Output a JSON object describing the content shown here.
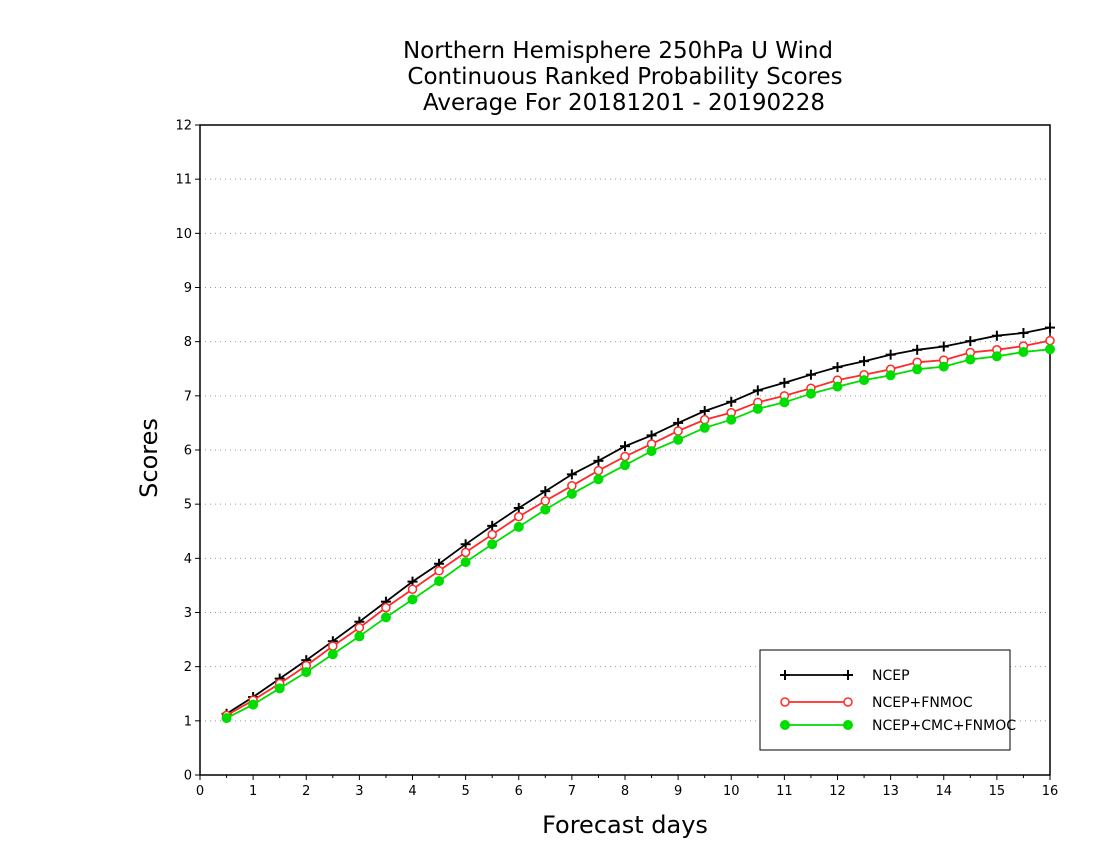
{
  "chart_data": {
    "type": "line",
    "title": [
      "Northern Hemisphere 250hPa U Wind",
      "Continuous Ranked Probability Scores",
      "Average For 20181201 - 20190228"
    ],
    "xlabel": "Forecast days",
    "ylabel": "Scores",
    "xlim": [
      0,
      16
    ],
    "ylim": [
      0,
      12
    ],
    "xticks": [
      "0",
      "1",
      "2",
      "3",
      "4",
      "5",
      "6",
      "7",
      "8",
      "9",
      "10",
      "11",
      "12",
      "13",
      "14",
      "15",
      "16"
    ],
    "yticks": [
      "0",
      "1",
      "2",
      "3",
      "4",
      "5",
      "6",
      "7",
      "8",
      "9",
      "10",
      "11",
      "12"
    ],
    "grid": true,
    "legend_position": "bottom-right",
    "x": [
      0.5,
      1,
      1.5,
      2,
      2.5,
      3,
      3.5,
      4,
      4.5,
      5,
      5.5,
      6,
      6.5,
      7,
      7.5,
      8,
      8.5,
      9,
      9.5,
      10,
      10.5,
      11,
      11.5,
      12,
      12.5,
      13,
      13.5,
      14,
      14.5,
      15,
      15.5,
      16
    ],
    "series": [
      {
        "name": "NCEP",
        "color": "#000000",
        "marker": "plus",
        "values": [
          1.13,
          1.44,
          1.78,
          2.12,
          2.47,
          2.83,
          3.2,
          3.57,
          3.9,
          4.26,
          4.6,
          4.93,
          5.24,
          5.55,
          5.8,
          6.07,
          6.27,
          6.5,
          6.72,
          6.89,
          7.1,
          7.24,
          7.39,
          7.53,
          7.64,
          7.76,
          7.85,
          7.91,
          8.01,
          8.11,
          8.16,
          8.26
        ]
      },
      {
        "name": "NCEP+FNMOC",
        "color": "#ff2a2a",
        "marker": "open-circle",
        "values": [
          1.1,
          1.38,
          1.69,
          2.02,
          2.38,
          2.72,
          3.09,
          3.43,
          3.77,
          4.11,
          4.44,
          4.77,
          5.06,
          5.34,
          5.62,
          5.88,
          6.11,
          6.35,
          6.56,
          6.69,
          6.88,
          7.0,
          7.14,
          7.29,
          7.39,
          7.49,
          7.62,
          7.66,
          7.8,
          7.85,
          7.92,
          8.02
        ]
      },
      {
        "name": "NCEP+CMC+FNMOC",
        "color": "#00dd00",
        "marker": "filled-circle",
        "values": [
          1.05,
          1.3,
          1.6,
          1.9,
          2.23,
          2.56,
          2.91,
          3.24,
          3.58,
          3.93,
          4.26,
          4.58,
          4.9,
          5.19,
          5.46,
          5.72,
          5.98,
          6.19,
          6.41,
          6.56,
          6.76,
          6.88,
          7.04,
          7.17,
          7.29,
          7.38,
          7.49,
          7.54,
          7.67,
          7.73,
          7.81,
          7.86
        ]
      }
    ]
  }
}
